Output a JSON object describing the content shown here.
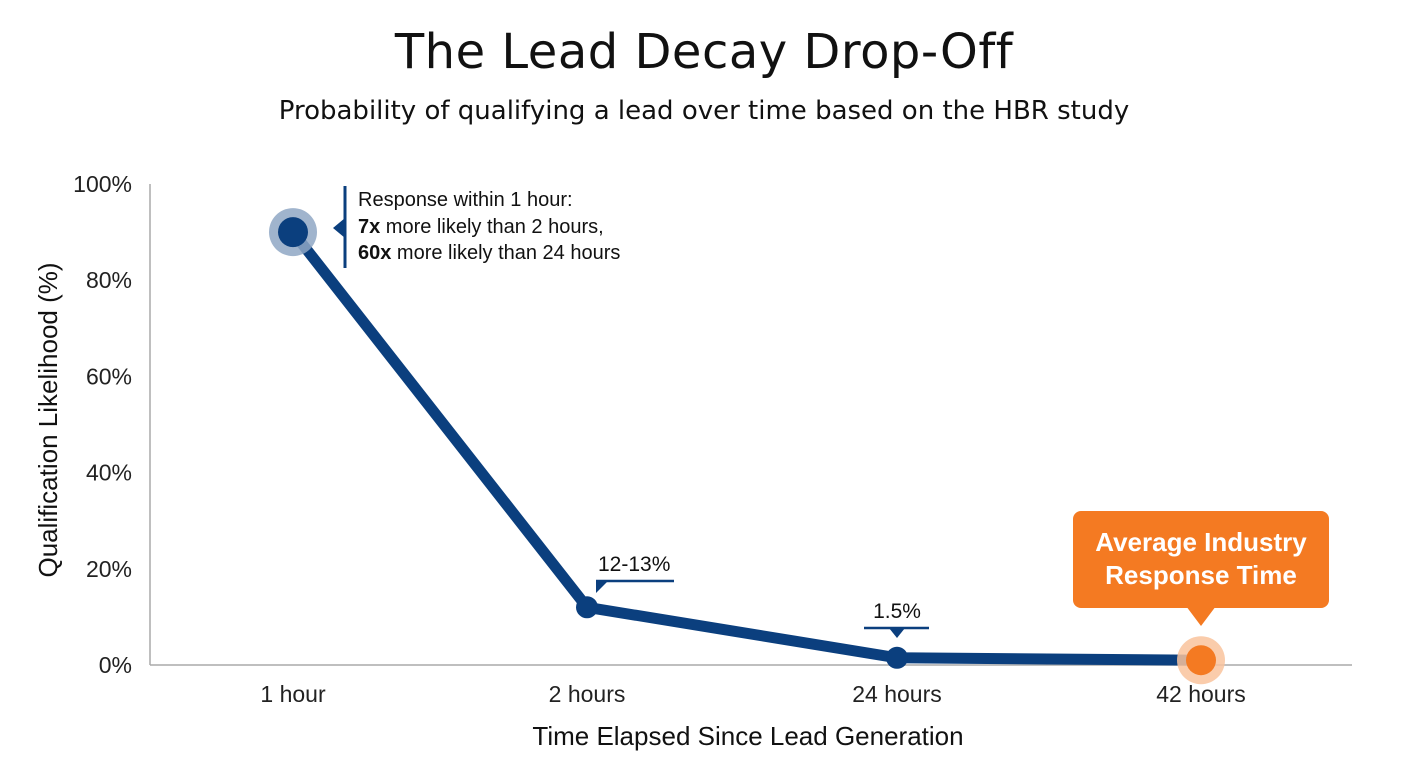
{
  "title": "The Lead Decay Drop-Off",
  "subtitle": "Probability of qualifying a lead over time based on the HBR study",
  "colors": {
    "series_line": "#0b3f7e",
    "highlight": "#f47a22",
    "axis": "#999999",
    "text": "#111111"
  },
  "chart_data": {
    "type": "line",
    "categories": [
      "1 hour",
      "2 hours",
      "24 hours",
      "42 hours"
    ],
    "series": [
      {
        "values": [
          90,
          12,
          1.5,
          1
        ]
      }
    ],
    "xlabel": "Time Elapsed Since Lead Generation",
    "ylabel": "Qualification Likelihood (%)",
    "ylim": [
      0,
      100
    ],
    "yticks": [
      "0%",
      "20%",
      "40%",
      "60%",
      "80%",
      "100%"
    ],
    "yticks_values": [
      0,
      20,
      40,
      60,
      80,
      100
    ],
    "grid": false,
    "legend": "none",
    "annotations": {
      "first_point": {
        "line1": "Response within 1 hour:",
        "line2_bold": "7x",
        "line2_rest": " more likely than 2 hours,",
        "line3_bold": "60x",
        "line3_rest": " more likely than 24 hours"
      },
      "second_point_label": "12-13%",
      "third_point_label": "1.5%",
      "callout_line1": "Average Industry",
      "callout_line2": "Response Time"
    }
  }
}
